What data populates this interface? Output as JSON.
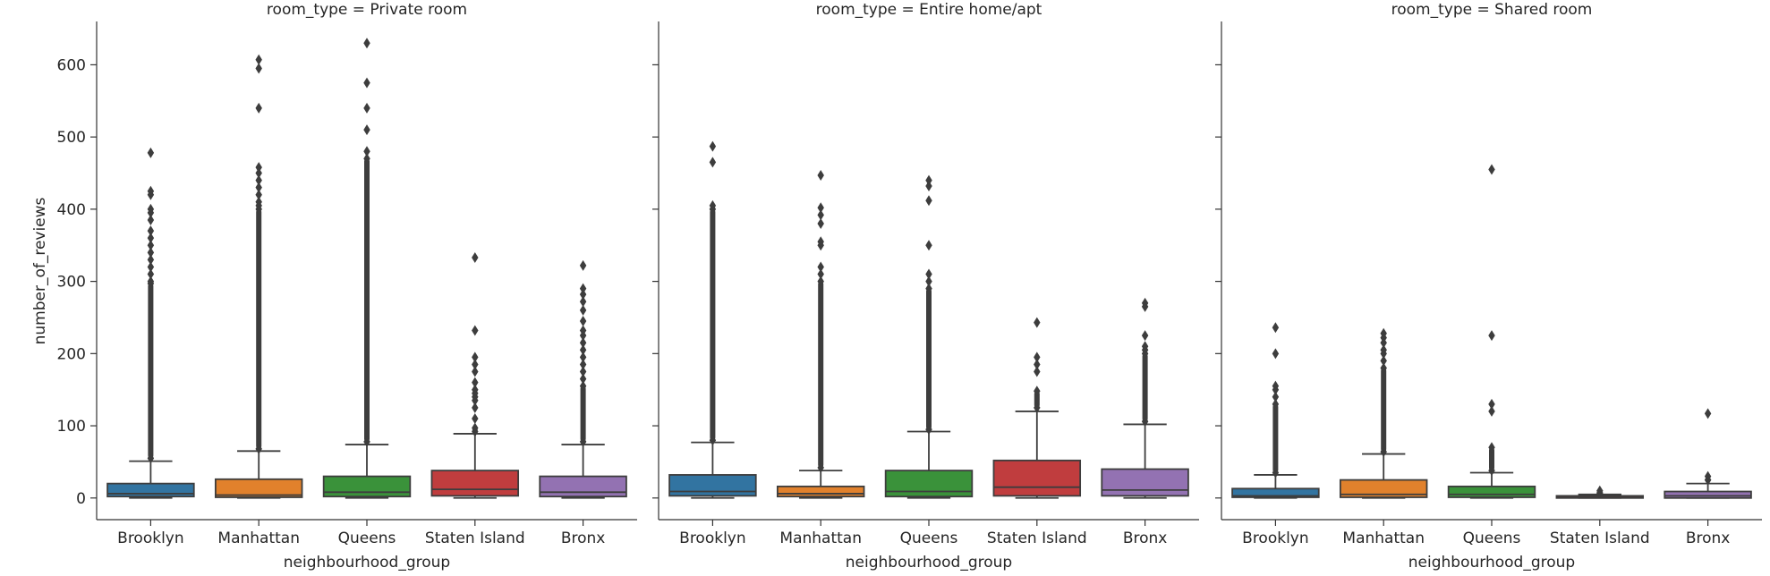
{
  "chart_data": {
    "type": "box",
    "ylabel": "number_of_reviews",
    "xlabel": "neighbourhood_group",
    "ylim": [
      -30,
      660
    ],
    "yticks": [
      0,
      100,
      200,
      300,
      400,
      500,
      600
    ],
    "categories": [
      "Brooklyn",
      "Manhattan",
      "Queens",
      "Staten Island",
      "Bronx"
    ],
    "colors": [
      "#3274a1",
      "#e1812c",
      "#3a923a",
      "#c03d3e",
      "#9372b2"
    ],
    "panels": [
      {
        "title": "room_type = Private room",
        "boxes": [
          {
            "category": "Brooklyn",
            "q1": 2,
            "median": 6,
            "q3": 20,
            "whisker_low": 0,
            "whisker_high": 51,
            "outlier_min": 55,
            "outlier_max": 297,
            "outliers": [
              300,
              310,
              320,
              330,
              340,
              350,
              360,
              370,
              385,
              395,
              400,
              420,
              425,
              478
            ]
          },
          {
            "category": "Manhattan",
            "q1": 1,
            "median": 4,
            "q3": 26,
            "whisker_low": 0,
            "whisker_high": 65,
            "outlier_min": 68,
            "outlier_max": 400,
            "outliers": [
              405,
              410,
              420,
              430,
              440,
              450,
              458,
              540,
              595,
              607
            ]
          },
          {
            "category": "Queens",
            "q1": 2,
            "median": 8,
            "q3": 30,
            "whisker_low": 0,
            "whisker_high": 74,
            "outlier_min": 78,
            "outlier_max": 470,
            "outliers": [
              480,
              510,
              540,
              575,
              630
            ]
          },
          {
            "category": "Staten Island",
            "q1": 3,
            "median": 12,
            "q3": 38,
            "whisker_low": 0,
            "whisker_high": 89,
            "outlier_min": 92,
            "outlier_max": 97,
            "outliers": [
              110,
              125,
              135,
              140,
              145,
              150,
              160,
              175,
              185,
              195,
              232,
              333
            ]
          },
          {
            "category": "Bronx",
            "q1": 2,
            "median": 8,
            "q3": 30,
            "whisker_low": 0,
            "whisker_high": 74,
            "outlier_min": 78,
            "outlier_max": 155,
            "outliers": [
              165,
              175,
              185,
              195,
              205,
              215,
              225,
              232,
              245,
              260,
              272,
              282,
              290,
              322
            ]
          }
        ]
      },
      {
        "title": "room_type = Entire home/apt",
        "boxes": [
          {
            "category": "Brooklyn",
            "q1": 3,
            "median": 9,
            "q3": 32,
            "whisker_low": 0,
            "whisker_high": 77,
            "outlier_min": 80,
            "outlier_max": 400,
            "outliers": [
              405,
              465,
              487
            ]
          },
          {
            "category": "Manhattan",
            "q1": 2,
            "median": 6,
            "q3": 16,
            "whisker_low": 0,
            "whisker_high": 38,
            "outlier_min": 42,
            "outlier_max": 300,
            "outliers": [
              310,
              320,
              350,
              355,
              380,
              392,
              402,
              447
            ]
          },
          {
            "category": "Queens",
            "q1": 2,
            "median": 9,
            "q3": 38,
            "whisker_low": 0,
            "whisker_high": 92,
            "outlier_min": 95,
            "outlier_max": 290,
            "outliers": [
              300,
              310,
              350,
              412,
              432,
              440
            ]
          },
          {
            "category": "Staten Island",
            "q1": 3,
            "median": 15,
            "q3": 52,
            "whisker_low": 0,
            "whisker_high": 120,
            "outlier_min": 125,
            "outlier_max": 148,
            "outliers": [
              175,
              185,
              195,
              243
            ]
          },
          {
            "category": "Bronx",
            "q1": 3,
            "median": 11,
            "q3": 40,
            "whisker_low": 0,
            "whisker_high": 102,
            "outlier_min": 106,
            "outlier_max": 200,
            "outliers": [
              205,
              210,
              225,
              265,
              270
            ]
          }
        ]
      },
      {
        "title": "room_type = Shared room",
        "boxes": [
          {
            "category": "Brooklyn",
            "q1": 1,
            "median": 3,
            "q3": 13,
            "whisker_low": 0,
            "whisker_high": 32,
            "outlier_min": 35,
            "outlier_max": 130,
            "outliers": [
              140,
              150,
              155,
              200,
              236
            ]
          },
          {
            "category": "Manhattan",
            "q1": 1,
            "median": 5,
            "q3": 25,
            "whisker_low": 0,
            "whisker_high": 61,
            "outlier_min": 64,
            "outlier_max": 180,
            "outliers": [
              190,
              200,
              205,
              215,
              222,
              228
            ]
          },
          {
            "category": "Queens",
            "q1": 1,
            "median": 5,
            "q3": 16,
            "whisker_low": 0,
            "whisker_high": 35,
            "outlier_min": 38,
            "outlier_max": 70,
            "outliers": [
              120,
              130,
              225,
              455
            ]
          },
          {
            "category": "Staten Island",
            "q1": 0,
            "median": 1,
            "q3": 3,
            "whisker_low": 0,
            "whisker_high": 5,
            "outlier_min": 7,
            "outlier_max": 7,
            "outliers": [
              10
            ]
          },
          {
            "category": "Bronx",
            "q1": 0,
            "median": 3,
            "q3": 9,
            "whisker_low": 0,
            "whisker_high": 20,
            "outlier_min": 25,
            "outlier_max": 25,
            "outliers": [
              30,
              117
            ]
          }
        ]
      }
    ]
  }
}
